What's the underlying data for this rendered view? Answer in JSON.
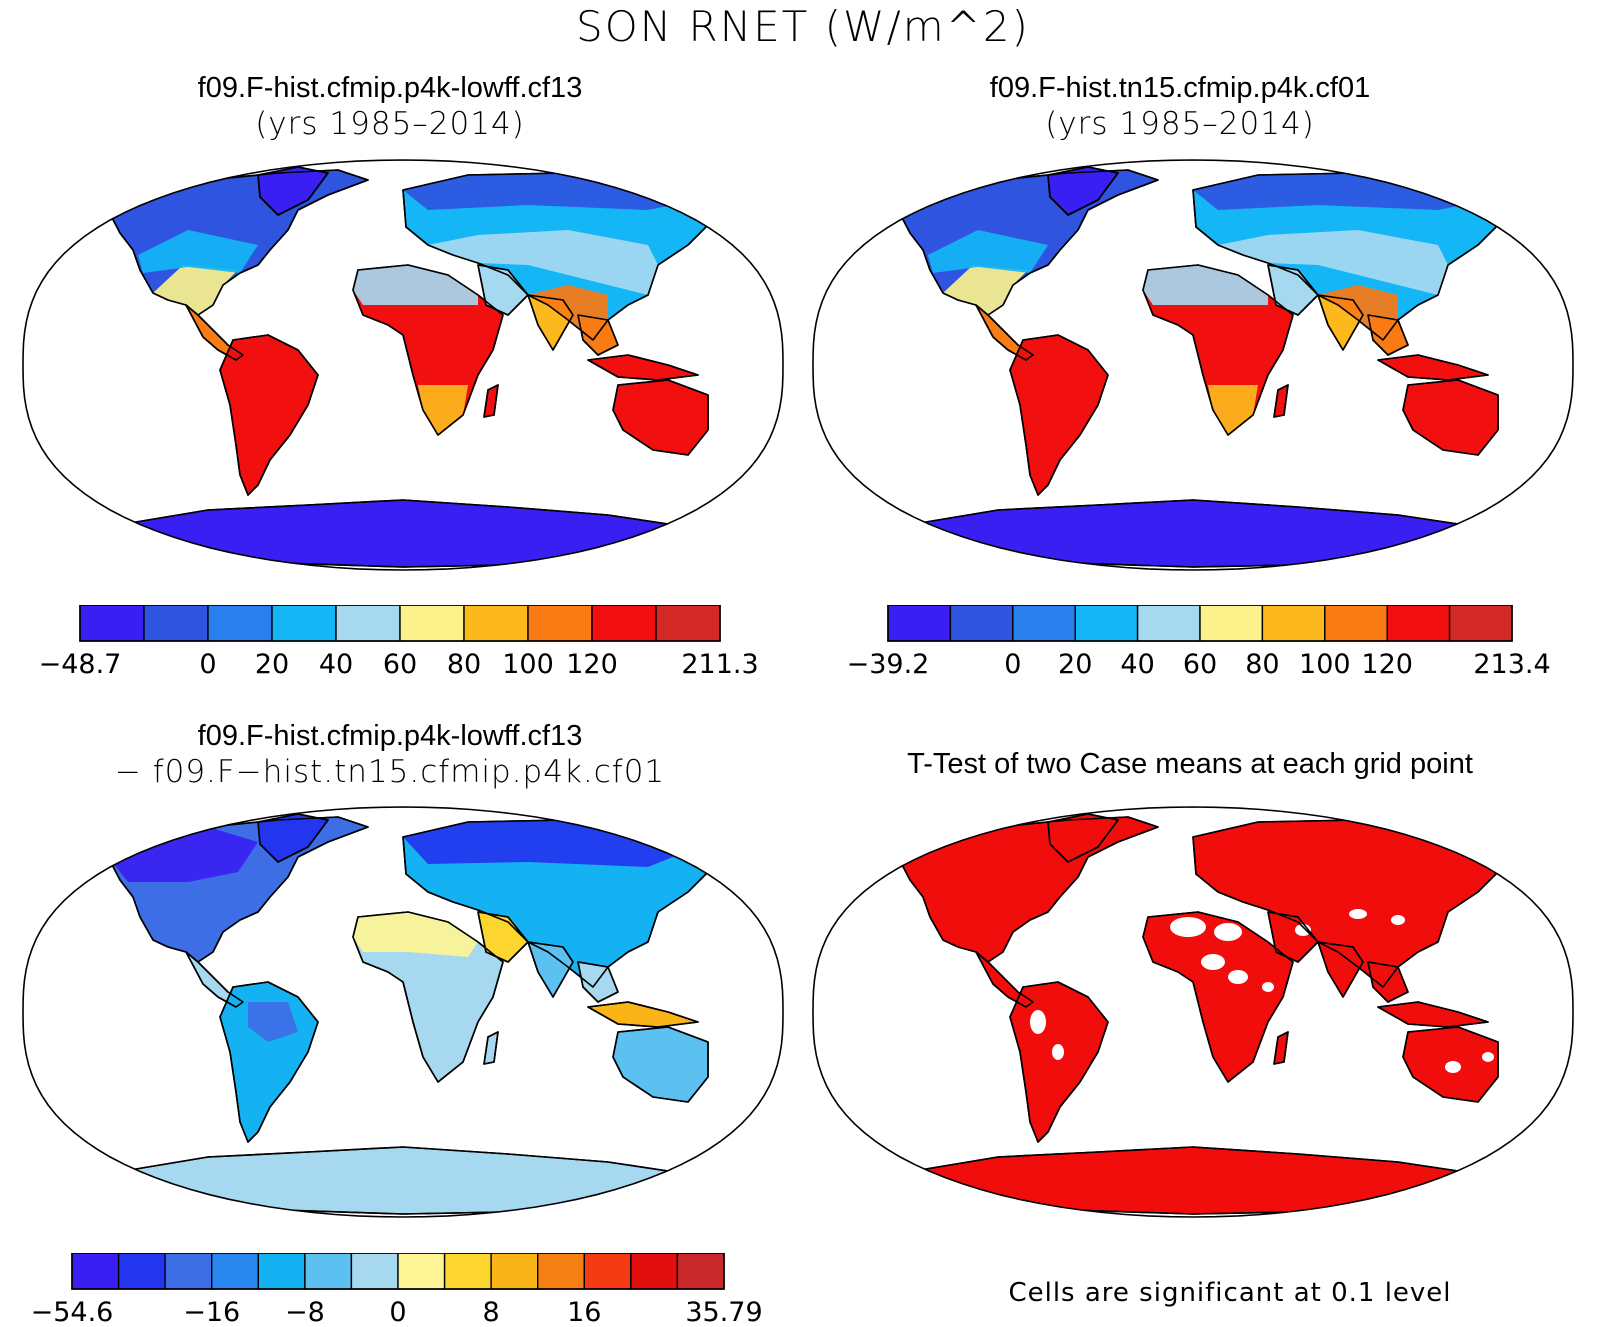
{
  "main_title": "SON RNET (W/m^2)",
  "colors": {
    "land_scale_10": [
      "#3a1ff2",
      "#2f55e0",
      "#2a7fef",
      "#14b6f5",
      "#a6d8f0",
      "#fbf28c",
      "#fcb81c",
      "#fa7a13",
      "#f10f0f",
      "#d32a28"
    ],
    "diff_scale_14": [
      "#3a1ff2",
      "#2335ee",
      "#3d6ee6",
      "#2a86ef",
      "#14b2f2",
      "#5cc0f0",
      "#a6d8f0",
      "#fdf595",
      "#fcd62e",
      "#fbb418",
      "#f57f12",
      "#f43a13",
      "#e30f0f",
      "#c8282a"
    ],
    "ttest_fill": "#f20d0d"
  },
  "panels": [
    {
      "title": "f09.F-hist.cfmip.p4k-lowff.cf13",
      "subtitle": "(yrs 1985–2014)",
      "colorbar": {
        "labels": [
          {
            "text": "−48.7",
            "i": 0
          },
          {
            "text": "0",
            "i": 2
          },
          {
            "text": "20",
            "i": 3
          },
          {
            "text": "40",
            "i": 4
          },
          {
            "text": "60",
            "i": 5
          },
          {
            "text": "80",
            "i": 6
          },
          {
            "text": "100",
            "i": 7
          },
          {
            "text": "120",
            "i": 8
          },
          {
            "text": "211.3",
            "i": 10
          }
        ]
      }
    },
    {
      "title": "f09.F-hist.tn15.cfmip.p4k.cf01",
      "subtitle": "(yrs 1985–2014)",
      "colorbar": {
        "labels": [
          {
            "text": "−39.2",
            "i": 0
          },
          {
            "text": "0",
            "i": 2
          },
          {
            "text": "20",
            "i": 3
          },
          {
            "text": "40",
            "i": 4
          },
          {
            "text": "60",
            "i": 5
          },
          {
            "text": "80",
            "i": 6
          },
          {
            "text": "100",
            "i": 7
          },
          {
            "text": "120",
            "i": 8
          },
          {
            "text": "213.4",
            "i": 10
          }
        ]
      }
    },
    {
      "title": "f09.F-hist.cfmip.p4k-lowff.cf13",
      "subtitle": "− f09.F−hist.tn15.cfmip.p4k.cf01",
      "colorbar": {
        "labels": [
          {
            "text": "−54.6",
            "i": 0
          },
          {
            "text": "−16",
            "i": 3
          },
          {
            "text": "−8",
            "i": 5
          },
          {
            "text": "0",
            "i": 7
          },
          {
            "text": "8",
            "i": 9
          },
          {
            "text": "16",
            "i": 11
          },
          {
            "text": "35.79",
            "i": 14
          }
        ]
      }
    },
    {
      "title": "T-Test of two Case means at each grid point",
      "footnote": "Cells are significant at 0.1 level"
    }
  ]
}
